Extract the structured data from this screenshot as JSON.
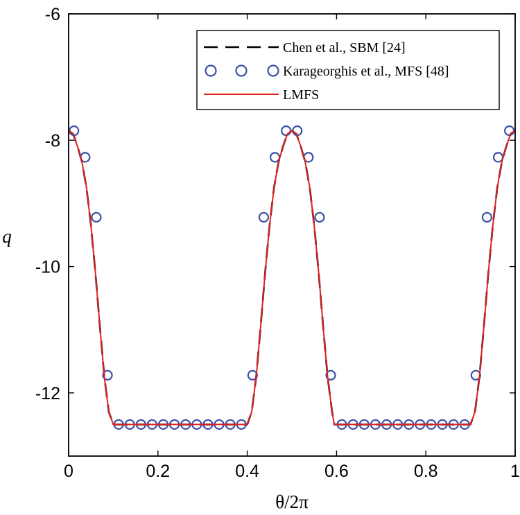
{
  "chart_data": {
    "type": "line",
    "title": "",
    "xlabel": "θ/2π",
    "ylabel": "q",
    "xlim": [
      0,
      1
    ],
    "ylim": [
      -13,
      -6
    ],
    "xticks": [
      0,
      0.2,
      0.4,
      0.6,
      0.8,
      1
    ],
    "xtick_labels": [
      "0",
      "0.2",
      "0.4",
      "0.6",
      "0.8",
      "1"
    ],
    "yticks": [
      -12,
      -10,
      -8,
      -6
    ],
    "ytick_labels": [
      "-12",
      "-10",
      "-8",
      "-6"
    ],
    "legend_position": "top-right",
    "series": [
      {
        "name": "Chen et al., SBM [24]",
        "style": "dashed",
        "color": "#000000",
        "x": [
          0,
          0.01,
          0.02,
          0.03,
          0.04,
          0.05,
          0.06,
          0.07,
          0.08,
          0.09,
          0.1,
          0.105,
          0.15,
          0.2,
          0.25,
          0.3,
          0.35,
          0.395,
          0.4,
          0.41,
          0.42,
          0.43,
          0.44,
          0.45,
          0.46,
          0.47,
          0.48,
          0.49,
          0.5,
          0.51,
          0.52,
          0.53,
          0.54,
          0.55,
          0.56,
          0.57,
          0.58,
          0.59,
          0.595,
          0.65,
          0.7,
          0.75,
          0.8,
          0.85,
          0.895,
          0.9,
          0.91,
          0.92,
          0.93,
          0.94,
          0.95,
          0.96,
          0.97,
          0.98,
          0.99,
          1.0
        ],
        "y": [
          -7.85,
          -7.9,
          -8.1,
          -8.35,
          -8.75,
          -9.35,
          -10.1,
          -10.95,
          -11.75,
          -12.3,
          -12.5,
          -12.5,
          -12.5,
          -12.5,
          -12.5,
          -12.5,
          -12.5,
          -12.5,
          -12.5,
          -12.3,
          -11.75,
          -10.95,
          -10.1,
          -9.35,
          -8.75,
          -8.35,
          -8.1,
          -7.9,
          -7.85,
          -7.9,
          -8.1,
          -8.35,
          -8.75,
          -9.35,
          -10.1,
          -10.95,
          -11.75,
          -12.3,
          -12.5,
          -12.5,
          -12.5,
          -12.5,
          -12.5,
          -12.5,
          -12.5,
          -12.5,
          -12.3,
          -11.75,
          -10.95,
          -10.1,
          -9.35,
          -8.75,
          -8.35,
          -8.1,
          -7.9,
          -7.85
        ]
      },
      {
        "name": "Karageorghis et al., MFS [48]",
        "style": "markers",
        "marker": "circle",
        "color": "#3A50A8",
        "x": [
          0.012,
          0.037,
          0.062,
          0.087,
          0.112,
          0.137,
          0.162,
          0.187,
          0.212,
          0.237,
          0.262,
          0.287,
          0.312,
          0.337,
          0.362,
          0.387,
          0.412,
          0.437,
          0.462,
          0.487,
          0.512,
          0.537,
          0.562,
          0.587,
          0.612,
          0.637,
          0.662,
          0.687,
          0.712,
          0.737,
          0.762,
          0.787,
          0.812,
          0.837,
          0.862,
          0.887,
          0.912,
          0.937,
          0.962,
          0.987
        ],
        "y": [
          -7.85,
          -8.27,
          -9.22,
          -11.72,
          -12.5,
          -12.5,
          -12.5,
          -12.5,
          -12.5,
          -12.5,
          -12.5,
          -12.5,
          -12.5,
          -12.5,
          -12.5,
          -12.5,
          -11.72,
          -9.22,
          -8.27,
          -7.85,
          -7.85,
          -8.27,
          -9.22,
          -11.72,
          -12.5,
          -12.5,
          -12.5,
          -12.5,
          -12.5,
          -12.5,
          -12.5,
          -12.5,
          -12.5,
          -12.5,
          -12.5,
          -12.5,
          -11.72,
          -9.22,
          -8.27,
          -7.85
        ]
      },
      {
        "name": "LMFS",
        "style": "solid",
        "color": "#E02020",
        "x": [
          0,
          0.01,
          0.02,
          0.03,
          0.04,
          0.05,
          0.06,
          0.07,
          0.08,
          0.09,
          0.1,
          0.105,
          0.15,
          0.2,
          0.25,
          0.3,
          0.35,
          0.395,
          0.4,
          0.41,
          0.42,
          0.43,
          0.44,
          0.45,
          0.46,
          0.47,
          0.48,
          0.49,
          0.5,
          0.51,
          0.52,
          0.53,
          0.54,
          0.55,
          0.56,
          0.57,
          0.58,
          0.59,
          0.595,
          0.65,
          0.7,
          0.75,
          0.8,
          0.85,
          0.895,
          0.9,
          0.91,
          0.92,
          0.93,
          0.94,
          0.95,
          0.96,
          0.97,
          0.98,
          0.99,
          1.0
        ],
        "y": [
          -7.85,
          -7.9,
          -8.1,
          -8.35,
          -8.75,
          -9.35,
          -10.1,
          -10.95,
          -11.75,
          -12.3,
          -12.5,
          -12.5,
          -12.5,
          -12.5,
          -12.5,
          -12.5,
          -12.5,
          -12.5,
          -12.5,
          -12.3,
          -11.75,
          -10.95,
          -10.1,
          -9.35,
          -8.75,
          -8.35,
          -8.1,
          -7.9,
          -7.85,
          -7.9,
          -8.1,
          -8.35,
          -8.75,
          -9.35,
          -10.1,
          -10.95,
          -11.75,
          -12.3,
          -12.5,
          -12.5,
          -12.5,
          -12.5,
          -12.5,
          -12.5,
          -12.5,
          -12.5,
          -12.3,
          -11.75,
          -10.95,
          -10.1,
          -9.35,
          -8.75,
          -8.35,
          -8.1,
          -7.9,
          -7.85
        ]
      }
    ]
  }
}
